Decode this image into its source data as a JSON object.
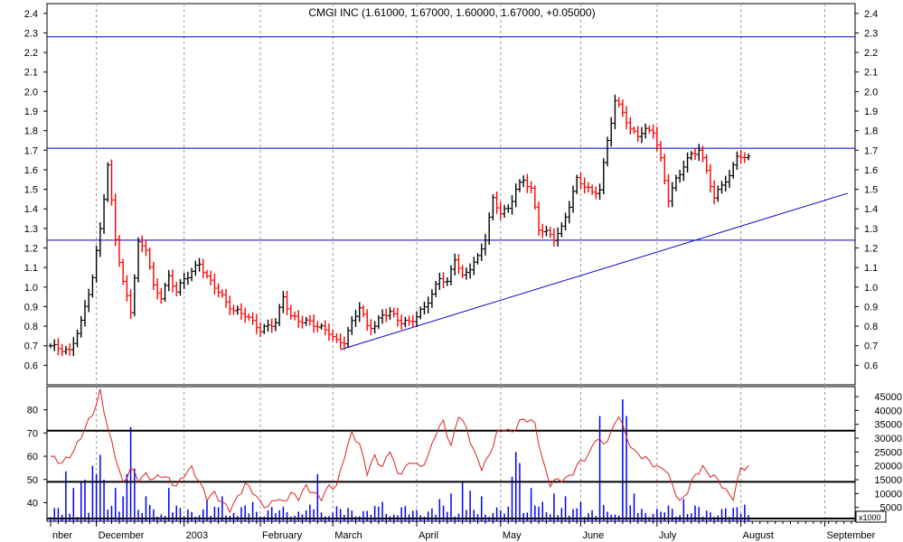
{
  "title": "CMGI INC (1.61000, 1.67000, 1.60000, 1.67000, +0.05000)",
  "colors": {
    "up": "#000000",
    "down": "#ff0000",
    "hline": "#0000cc",
    "trend": "#0000cc",
    "indicator": "#dd2222",
    "volume": "#0000ff",
    "grid": "#9a9a9a",
    "frame": "#000000"
  },
  "chart_data": [
    {
      "type": "ohlc",
      "name": "price",
      "ylim": [
        0.5,
        2.45
      ],
      "yticks": [
        0.6,
        0.7,
        0.8,
        0.9,
        1.0,
        1.1,
        1.2,
        1.3,
        1.4,
        1.5,
        1.6,
        1.7,
        1.8,
        1.9,
        2.0,
        2.1,
        2.2,
        2.3,
        2.4
      ],
      "ytick_labels": [
        "0.6",
        "0.7",
        "0.8",
        "0.9",
        "1.0",
        "1.1",
        "1.2",
        "1.3",
        "1.4",
        "1.5",
        "1.6",
        "1.7",
        "1.8",
        "1.9",
        "2.0",
        "2.1",
        "2.2",
        "2.3",
        "2.4"
      ],
      "grid": true,
      "horizontal_lines": [
        2.28,
        1.71,
        1.24
      ],
      "trendline": [
        [
          76,
          0.68
        ],
        [
          209,
          1.48
        ]
      ],
      "knots": [
        [
          0,
          0.7
        ],
        [
          5,
          0.67
        ],
        [
          8,
          0.82
        ],
        [
          11,
          1.05
        ],
        [
          13,
          1.3
        ],
        [
          15,
          1.62
        ],
        [
          17,
          1.25
        ],
        [
          19,
          1.02
        ],
        [
          21,
          0.88
        ],
        [
          23,
          1.22
        ],
        [
          25,
          1.2
        ],
        [
          27,
          1.0
        ],
        [
          29,
          0.95
        ],
        [
          31,
          1.05
        ],
        [
          33,
          0.98
        ],
        [
          35,
          1.04
        ],
        [
          37,
          1.08
        ],
        [
          39,
          1.12
        ],
        [
          41,
          1.05
        ],
        [
          44,
          0.98
        ],
        [
          46,
          0.92
        ],
        [
          48,
          0.88
        ],
        [
          51,
          0.86
        ],
        [
          53,
          0.82
        ],
        [
          55,
          0.78
        ],
        [
          57,
          0.8
        ],
        [
          59,
          0.82
        ],
        [
          61,
          0.95
        ],
        [
          63,
          0.85
        ],
        [
          65,
          0.83
        ],
        [
          68,
          0.82
        ],
        [
          71,
          0.79
        ],
        [
          73,
          0.77
        ],
        [
          75,
          0.72
        ],
        [
          77,
          0.72
        ],
        [
          79,
          0.82
        ],
        [
          81,
          0.9
        ],
        [
          83,
          0.8
        ],
        [
          85,
          0.8
        ],
        [
          87,
          0.86
        ],
        [
          89,
          0.87
        ],
        [
          92,
          0.82
        ],
        [
          94,
          0.82
        ],
        [
          96,
          0.85
        ],
        [
          98,
          0.9
        ],
        [
          100,
          0.96
        ],
        [
          102,
          1.05
        ],
        [
          104,
          1.02
        ],
        [
          106,
          1.15
        ],
        [
          108,
          1.05
        ],
        [
          110,
          1.1
        ],
        [
          112,
          1.15
        ],
        [
          114,
          1.25
        ],
        [
          116,
          1.45
        ],
        [
          118,
          1.38
        ],
        [
          120,
          1.4
        ],
        [
          122,
          1.5
        ],
        [
          124,
          1.55
        ],
        [
          126,
          1.5
        ],
        [
          128,
          1.3
        ],
        [
          130,
          1.28
        ],
        [
          132,
          1.25
        ],
        [
          134,
          1.3
        ],
        [
          136,
          1.42
        ],
        [
          138,
          1.55
        ],
        [
          140,
          1.52
        ],
        [
          142,
          1.48
        ],
        [
          144,
          1.5
        ],
        [
          146,
          1.75
        ],
        [
          148,
          1.95
        ],
        [
          150,
          1.9
        ],
        [
          152,
          1.8
        ],
        [
          154,
          1.78
        ],
        [
          156,
          1.8
        ],
        [
          158,
          1.8
        ],
        [
          160,
          1.65
        ],
        [
          162,
          1.45
        ],
        [
          164,
          1.55
        ],
        [
          166,
          1.62
        ],
        [
          168,
          1.68
        ],
        [
          170,
          1.7
        ],
        [
          172,
          1.6
        ],
        [
          174,
          1.45
        ],
        [
          176,
          1.53
        ],
        [
          178,
          1.56
        ],
        [
          180,
          1.68
        ],
        [
          182,
          1.65
        ],
        [
          183,
          1.67
        ]
      ],
      "n_bars": 184
    },
    {
      "type": "line",
      "name": "indicator",
      "ylim": [
        32,
        90
      ],
      "yticks": [
        40,
        50,
        60,
        70,
        80
      ],
      "ytick_labels": [
        "40",
        "50",
        "60",
        "70",
        "80"
      ],
      "horizontal_lines": [
        71,
        49
      ],
      "knots": [
        [
          0,
          60
        ],
        [
          3,
          57
        ],
        [
          6,
          62
        ],
        [
          9,
          72
        ],
        [
          12,
          82
        ],
        [
          13,
          88
        ],
        [
          15,
          72
        ],
        [
          17,
          60
        ],
        [
          19,
          48
        ],
        [
          21,
          55
        ],
        [
          23,
          50
        ],
        [
          25,
          52
        ],
        [
          27,
          50
        ],
        [
          29,
          52
        ],
        [
          31,
          50
        ],
        [
          33,
          47
        ],
        [
          35,
          52
        ],
        [
          37,
          55
        ],
        [
          39,
          49
        ],
        [
          41,
          42
        ],
        [
          43,
          44
        ],
        [
          45,
          40
        ],
        [
          47,
          37
        ],
        [
          49,
          42
        ],
        [
          51,
          48
        ],
        [
          53,
          45
        ],
        [
          55,
          40
        ],
        [
          57,
          38
        ],
        [
          59,
          42
        ],
        [
          61,
          40
        ],
        [
          63,
          44
        ],
        [
          65,
          42
        ],
        [
          67,
          47
        ],
        [
          69,
          44
        ],
        [
          71,
          42
        ],
        [
          73,
          47
        ],
        [
          75,
          47
        ],
        [
          77,
          60
        ],
        [
          79,
          70
        ],
        [
          81,
          65
        ],
        [
          83,
          53
        ],
        [
          85,
          60
        ],
        [
          87,
          55
        ],
        [
          89,
          63
        ],
        [
          91,
          52
        ],
        [
          93,
          55
        ],
        [
          95,
          58
        ],
        [
          97,
          55
        ],
        [
          99,
          60
        ],
        [
          101,
          70
        ],
        [
          103,
          75
        ],
        [
          105,
          64
        ],
        [
          107,
          78
        ],
        [
          109,
          72
        ],
        [
          111,
          62
        ],
        [
          113,
          55
        ],
        [
          115,
          60
        ],
        [
          117,
          70
        ],
        [
          119,
          72
        ],
        [
          121,
          70
        ],
        [
          123,
          75
        ],
        [
          125,
          76
        ],
        [
          127,
          74
        ],
        [
          129,
          58
        ],
        [
          131,
          48
        ],
        [
          133,
          50
        ],
        [
          135,
          50
        ],
        [
          137,
          53
        ],
        [
          139,
          58
        ],
        [
          141,
          60
        ],
        [
          143,
          68
        ],
        [
          145,
          65
        ],
        [
          147,
          70
        ],
        [
          149,
          78
        ],
        [
          151,
          68
        ],
        [
          153,
          62
        ],
        [
          155,
          60
        ],
        [
          157,
          58
        ],
        [
          159,
          55
        ],
        [
          161,
          55
        ],
        [
          163,
          48
        ],
        [
          165,
          40
        ],
        [
          167,
          45
        ],
        [
          169,
          52
        ],
        [
          171,
          55
        ],
        [
          173,
          52
        ],
        [
          175,
          50
        ],
        [
          177,
          45
        ],
        [
          179,
          42
        ],
        [
          181,
          55
        ],
        [
          183,
          55
        ]
      ]
    },
    {
      "type": "bar",
      "name": "volume",
      "unit_label": "x1000",
      "ylim": [
        0,
        46000
      ],
      "yticks": [
        5000,
        10000,
        15000,
        20000,
        25000,
        30000,
        35000,
        40000,
        45000
      ],
      "ytick_labels": [
        "5000",
        "10000",
        "15000",
        "20000",
        "25000",
        "30000",
        "35000",
        "40000",
        "45000"
      ],
      "spikes": [
        [
          4,
          18000
        ],
        [
          6,
          12000
        ],
        [
          8,
          14000
        ],
        [
          9,
          15000
        ],
        [
          11,
          20000
        ],
        [
          12,
          17000
        ],
        [
          13,
          24000
        ],
        [
          14,
          15000
        ],
        [
          17,
          12000
        ],
        [
          19,
          9000
        ],
        [
          20,
          17000
        ],
        [
          21,
          34000
        ],
        [
          22,
          19000
        ],
        [
          25,
          9000
        ],
        [
          31,
          12000
        ],
        [
          41,
          8000
        ],
        [
          45,
          9000
        ],
        [
          53,
          7000
        ],
        [
          70,
          17000
        ],
        [
          87,
          7000
        ],
        [
          102,
          8000
        ],
        [
          105,
          10000
        ],
        [
          108,
          14000
        ],
        [
          110,
          11000
        ],
        [
          113,
          9000
        ],
        [
          121,
          16000
        ],
        [
          122,
          25000
        ],
        [
          123,
          21000
        ],
        [
          126,
          12000
        ],
        [
          129,
          7000
        ],
        [
          132,
          10000
        ],
        [
          135,
          9000
        ],
        [
          139,
          7000
        ],
        [
          144,
          38000
        ],
        [
          150,
          44000
        ],
        [
          151,
          38000
        ],
        [
          153,
          10000
        ],
        [
          166,
          8000
        ],
        [
          182,
          6000
        ]
      ]
    }
  ],
  "x_months": [
    {
      "label": "nber",
      "pos": 0
    },
    {
      "label": "December",
      "pos": 12
    },
    {
      "label": "2003",
      "pos": 35
    },
    {
      "label": "February",
      "pos": 55
    },
    {
      "label": "March",
      "pos": 74
    },
    {
      "label": "April",
      "pos": 96
    },
    {
      "label": "May",
      "pos": 118
    },
    {
      "label": "June",
      "pos": 139
    },
    {
      "label": "July",
      "pos": 159
    },
    {
      "label": "August",
      "pos": 181
    },
    {
      "label": "September",
      "pos": 203
    }
  ],
  "x_total": 210
}
